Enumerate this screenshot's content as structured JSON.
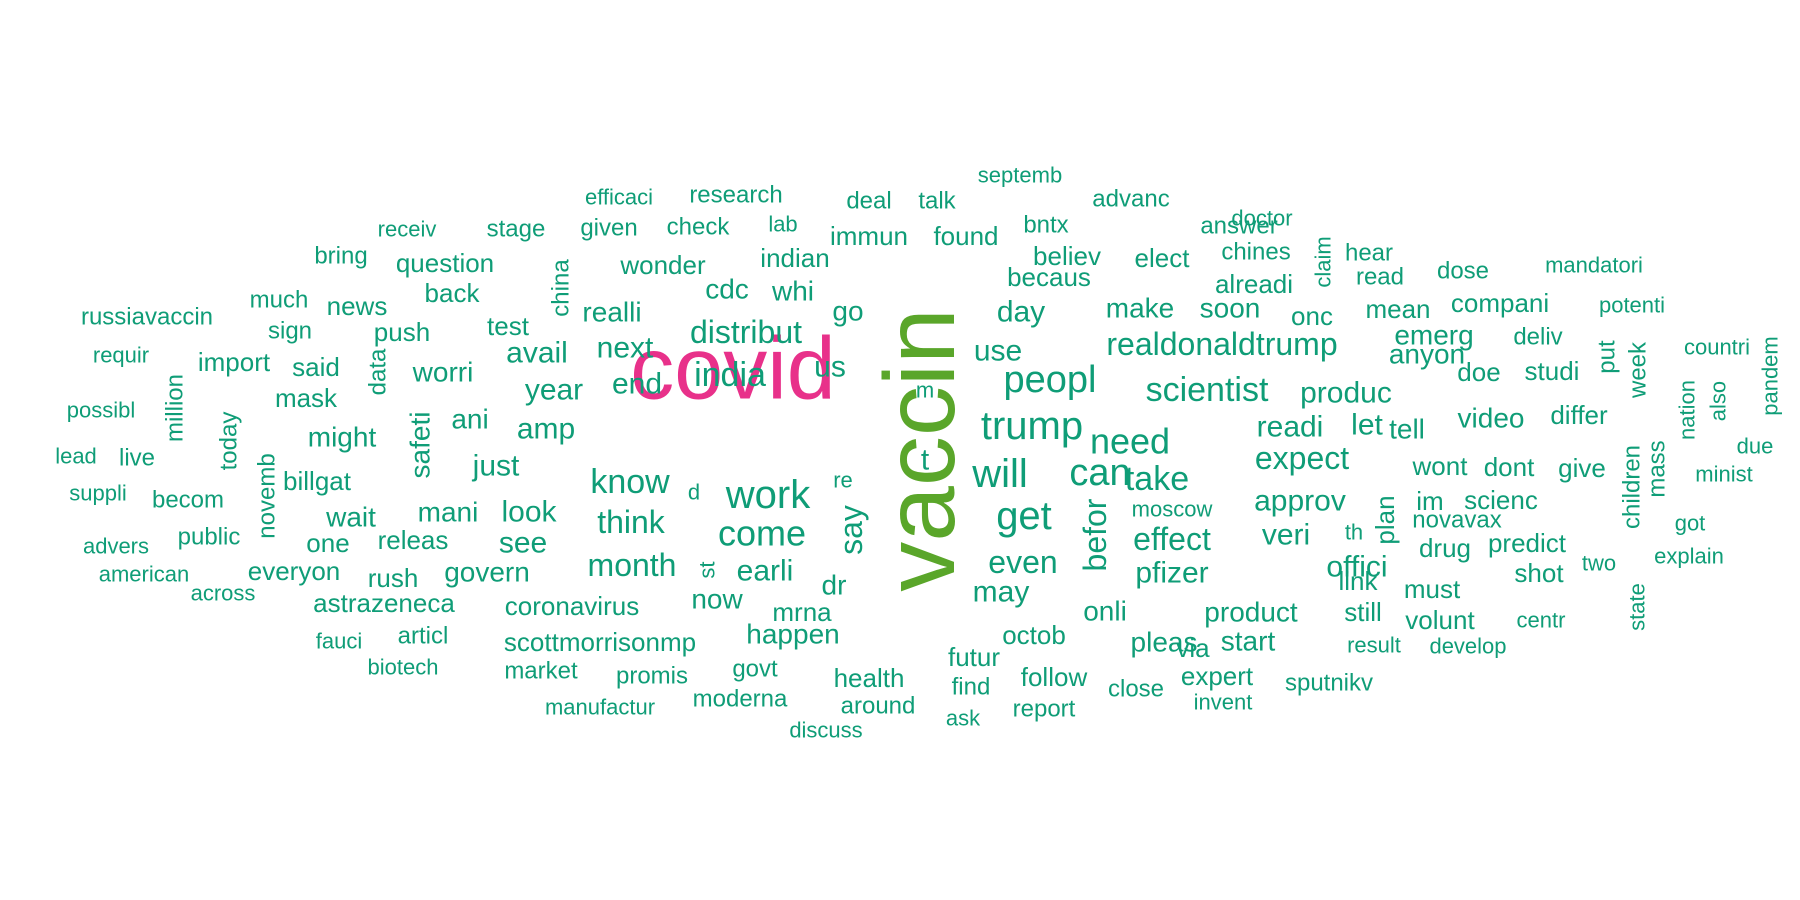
{
  "colors": {
    "primary": "#0f9d77",
    "secondary": "#5aa62a",
    "accent": "#e8318a",
    "text": "#22936c"
  },
  "words": [
    {
      "text": "vaccin",
      "size": 100,
      "color": "secondary",
      "rotate": -90
    },
    {
      "text": "covid",
      "size": 88,
      "color": "accent",
      "rotate": 0
    },
    {
      "text": "trump",
      "size": 40,
      "color": "primary",
      "rotate": 0
    },
    {
      "text": "work",
      "size": 40,
      "color": "primary",
      "rotate": 0
    },
    {
      "text": "get",
      "size": 40,
      "color": "primary",
      "rotate": 0
    },
    {
      "text": "will",
      "size": 40,
      "color": "primary",
      "rotate": 0
    },
    {
      "text": "peopl",
      "size": 38,
      "color": "primary",
      "rotate": 0
    },
    {
      "text": "can",
      "size": 38,
      "color": "primary",
      "rotate": 0
    },
    {
      "text": "come",
      "size": 36,
      "color": "primary",
      "rotate": 0
    },
    {
      "text": "know",
      "size": 34,
      "color": "primary",
      "rotate": 0
    },
    {
      "text": "need",
      "size": 36,
      "color": "primary",
      "rotate": 0
    },
    {
      "text": "take",
      "size": 34,
      "color": "primary",
      "rotate": 0
    },
    {
      "text": "india",
      "size": 34,
      "color": "primary",
      "rotate": 0
    },
    {
      "text": "say",
      "size": 32,
      "color": "primary",
      "rotate": -90
    },
    {
      "text": "befor",
      "size": 32,
      "color": "primary",
      "rotate": -90
    },
    {
      "text": "realdonaldtrump",
      "size": 32,
      "color": "primary",
      "rotate": 0
    },
    {
      "text": "scientist",
      "size": 34,
      "color": "primary",
      "rotate": 0
    },
    {
      "text": "expect",
      "size": 32,
      "color": "primary",
      "rotate": 0
    },
    {
      "text": "distribut",
      "size": 32,
      "color": "primary",
      "rotate": 0
    },
    {
      "text": "think",
      "size": 32,
      "color": "primary",
      "rotate": 0
    },
    {
      "text": "month",
      "size": 32,
      "color": "primary",
      "rotate": 0
    },
    {
      "text": "even",
      "size": 32,
      "color": "primary",
      "rotate": 0
    },
    {
      "text": "effect",
      "size": 32,
      "color": "primary",
      "rotate": 0
    },
    {
      "text": "approv",
      "size": 30,
      "color": "primary",
      "rotate": 0
    },
    {
      "text": "amp",
      "size": 30,
      "color": "primary",
      "rotate": 0
    },
    {
      "text": "year",
      "size": 30,
      "color": "primary",
      "rotate": 0
    },
    {
      "text": "end",
      "size": 30,
      "color": "primary",
      "rotate": 0
    },
    {
      "text": "just",
      "size": 30,
      "color": "primary",
      "rotate": 0
    },
    {
      "text": "look",
      "size": 30,
      "color": "primary",
      "rotate": 0
    },
    {
      "text": "earli",
      "size": 30,
      "color": "primary",
      "rotate": 0
    },
    {
      "text": "may",
      "size": 30,
      "color": "primary",
      "rotate": 0
    },
    {
      "text": "us",
      "size": 30,
      "color": "primary",
      "rotate": 0
    },
    {
      "text": "day",
      "size": 30,
      "color": "primary",
      "rotate": 0
    },
    {
      "text": "use",
      "size": 30,
      "color": "primary",
      "rotate": 0
    },
    {
      "text": "readi",
      "size": 30,
      "color": "primary",
      "rotate": 0
    },
    {
      "text": "let",
      "size": 30,
      "color": "primary",
      "rotate": 0
    },
    {
      "text": "pfizer",
      "size": 30,
      "color": "primary",
      "rotate": 0
    },
    {
      "text": "veri",
      "size": 30,
      "color": "primary",
      "rotate": 0
    },
    {
      "text": "offici",
      "size": 30,
      "color": "primary",
      "rotate": 0
    },
    {
      "text": "produc",
      "size": 30,
      "color": "primary",
      "rotate": 0
    },
    {
      "text": "next",
      "size": 30,
      "color": "primary",
      "rotate": 0
    },
    {
      "text": "avail",
      "size": 30,
      "color": "primary",
      "rotate": 0
    },
    {
      "text": "see",
      "size": 30,
      "color": "primary",
      "rotate": 0
    },
    {
      "text": "now",
      "size": 28,
      "color": "primary",
      "rotate": 0
    },
    {
      "text": "make",
      "size": 28,
      "color": "primary",
      "rotate": 0
    },
    {
      "text": "soon",
      "size": 28,
      "color": "primary",
      "rotate": 0
    },
    {
      "text": "ani",
      "size": 28,
      "color": "primary",
      "rotate": 0
    },
    {
      "text": "mani",
      "size": 28,
      "color": "primary",
      "rotate": 0
    },
    {
      "text": "govern",
      "size": 28,
      "color": "primary",
      "rotate": 0
    },
    {
      "text": "wait",
      "size": 28,
      "color": "primary",
      "rotate": 0
    },
    {
      "text": "might",
      "size": 28,
      "color": "primary",
      "rotate": 0
    },
    {
      "text": "worri",
      "size": 28,
      "color": "primary",
      "rotate": 0
    },
    {
      "text": "go",
      "size": 28,
      "color": "primary",
      "rotate": 0
    },
    {
      "text": "dr",
      "size": 28,
      "color": "primary",
      "rotate": 0
    },
    {
      "text": "onli",
      "size": 28,
      "color": "primary",
      "rotate": 0
    },
    {
      "text": "pleas",
      "size": 28,
      "color": "primary",
      "rotate": 0
    },
    {
      "text": "product",
      "size": 28,
      "color": "primary",
      "rotate": 0
    },
    {
      "text": "start",
      "size": 28,
      "color": "primary",
      "rotate": 0
    },
    {
      "text": "safeti",
      "size": 28,
      "color": "primary",
      "rotate": -90
    },
    {
      "text": "happen",
      "size": 28,
      "color": "primary",
      "rotate": 0
    },
    {
      "text": "realli",
      "size": 28,
      "color": "primary",
      "rotate": 0
    },
    {
      "text": "cdc",
      "size": 28,
      "color": "primary",
      "rotate": 0
    },
    {
      "text": "whi",
      "size": 28,
      "color": "primary",
      "rotate": 0
    },
    {
      "text": "tell",
      "size": 28,
      "color": "primary",
      "rotate": 0
    },
    {
      "text": "video",
      "size": 28,
      "color": "primary",
      "rotate": 0
    },
    {
      "text": "anyon",
      "size": 28,
      "color": "primary",
      "rotate": 0
    },
    {
      "text": "emerg",
      "size": 28,
      "color": "primary",
      "rotate": 0
    },
    {
      "text": "mean",
      "size": 26,
      "color": "primary",
      "rotate": 0
    },
    {
      "text": "alreadi",
      "size": 26,
      "color": "primary",
      "rotate": 0
    },
    {
      "text": "elect",
      "size": 26,
      "color": "primary",
      "rotate": 0
    },
    {
      "text": "becaus",
      "size": 26,
      "color": "primary",
      "rotate": 0
    },
    {
      "text": "believ",
      "size": 26,
      "color": "primary",
      "rotate": 0
    },
    {
      "text": "onc",
      "size": 26,
      "color": "primary",
      "rotate": 0
    },
    {
      "text": "doe",
      "size": 26,
      "color": "primary",
      "rotate": 0
    },
    {
      "text": "studi",
      "size": 26,
      "color": "primary",
      "rotate": 0
    },
    {
      "text": "compani",
      "size": 26,
      "color": "primary",
      "rotate": 0
    },
    {
      "text": "differ",
      "size": 26,
      "color": "primary",
      "rotate": 0
    },
    {
      "text": "wont",
      "size": 26,
      "color": "primary",
      "rotate": 0
    },
    {
      "text": "dont",
      "size": 26,
      "color": "primary",
      "rotate": 0
    },
    {
      "text": "give",
      "size": 26,
      "color": "primary",
      "rotate": 0
    },
    {
      "text": "im",
      "size": 26,
      "color": "primary",
      "rotate": 0
    },
    {
      "text": "scienc",
      "size": 26,
      "color": "primary",
      "rotate": 0
    },
    {
      "text": "predict",
      "size": 26,
      "color": "primary",
      "rotate": 0
    },
    {
      "text": "drug",
      "size": 26,
      "color": "primary",
      "rotate": 0
    },
    {
      "text": "plan",
      "size": 26,
      "color": "primary",
      "rotate": -90
    },
    {
      "text": "must",
      "size": 26,
      "color": "primary",
      "rotate": 0
    },
    {
      "text": "link",
      "size": 26,
      "color": "primary",
      "rotate": 0
    },
    {
      "text": "still",
      "size": 26,
      "color": "primary",
      "rotate": 0
    },
    {
      "text": "shot",
      "size": 26,
      "color": "primary",
      "rotate": 0
    },
    {
      "text": "volunt",
      "size": 26,
      "color": "primary",
      "rotate": 0
    },
    {
      "text": "via",
      "size": 26,
      "color": "primary",
      "rotate": 0
    },
    {
      "text": "expert",
      "size": 26,
      "color": "primary",
      "rotate": 0
    },
    {
      "text": "indian",
      "size": 26,
      "color": "primary",
      "rotate": 0
    },
    {
      "text": "wonder",
      "size": 26,
      "color": "primary",
      "rotate": 0
    },
    {
      "text": "immun",
      "size": 26,
      "color": "primary",
      "rotate": 0
    },
    {
      "text": "found",
      "size": 26,
      "color": "primary",
      "rotate": 0
    },
    {
      "text": "octob",
      "size": 26,
      "color": "primary",
      "rotate": 0
    },
    {
      "text": "futur",
      "size": 26,
      "color": "primary",
      "rotate": 0
    },
    {
      "text": "follow",
      "size": 26,
      "color": "primary",
      "rotate": 0
    },
    {
      "text": "health",
      "size": 26,
      "color": "primary",
      "rotate": 0
    },
    {
      "text": "mrna",
      "size": 26,
      "color": "primary",
      "rotate": 0
    },
    {
      "text": "coronavirus",
      "size": 26,
      "color": "primary",
      "rotate": 0
    },
    {
      "text": "scottmorrisonmp",
      "size": 26,
      "color": "primary",
      "rotate": 0
    },
    {
      "text": "astrazeneca",
      "size": 26,
      "color": "primary",
      "rotate": 0
    },
    {
      "text": "rush",
      "size": 26,
      "color": "primary",
      "rotate": 0
    },
    {
      "text": "everyon",
      "size": 26,
      "color": "primary",
      "rotate": 0
    },
    {
      "text": "one",
      "size": 26,
      "color": "primary",
      "rotate": 0
    },
    {
      "text": "releas",
      "size": 26,
      "color": "primary",
      "rotate": 0
    },
    {
      "text": "billgat",
      "size": 26,
      "color": "primary",
      "rotate": 0
    },
    {
      "text": "mask",
      "size": 26,
      "color": "primary",
      "rotate": 0
    },
    {
      "text": "said",
      "size": 26,
      "color": "primary",
      "rotate": 0
    },
    {
      "text": "push",
      "size": 26,
      "color": "primary",
      "rotate": 0
    },
    {
      "text": "test",
      "size": 26,
      "color": "primary",
      "rotate": 0
    },
    {
      "text": "back",
      "size": 26,
      "color": "primary",
      "rotate": 0
    },
    {
      "text": "question",
      "size": 26,
      "color": "primary",
      "rotate": 0
    },
    {
      "text": "news",
      "size": 26,
      "color": "primary",
      "rotate": 0
    },
    {
      "text": "import",
      "size": 26,
      "color": "primary",
      "rotate": 0
    },
    {
      "text": "public",
      "size": 24,
      "color": "primary",
      "rotate": 0
    },
    {
      "text": "becom",
      "size": 24,
      "color": "primary",
      "rotate": 0
    },
    {
      "text": "articl",
      "size": 24,
      "color": "primary",
      "rotate": 0
    },
    {
      "text": "market",
      "size": 24,
      "color": "primary",
      "rotate": 0
    },
    {
      "text": "promis",
      "size": 24,
      "color": "primary",
      "rotate": 0
    },
    {
      "text": "govt",
      "size": 24,
      "color": "primary",
      "rotate": 0
    },
    {
      "text": "moderna",
      "size": 24,
      "color": "primary",
      "rotate": 0
    },
    {
      "text": "around",
      "size": 24,
      "color": "primary",
      "rotate": 0
    },
    {
      "text": "find",
      "size": 24,
      "color": "primary",
      "rotate": 0
    },
    {
      "text": "report",
      "size": 24,
      "color": "primary",
      "rotate": 0
    },
    {
      "text": "close",
      "size": 24,
      "color": "primary",
      "rotate": 0
    },
    {
      "text": "sputnikv",
      "size": 24,
      "color": "primary",
      "rotate": 0
    },
    {
      "text": "novavax",
      "size": 24,
      "color": "primary",
      "rotate": 0
    },
    {
      "text": "read",
      "size": 24,
      "color": "primary",
      "rotate": 0
    },
    {
      "text": "chines",
      "size": 24,
      "color": "primary",
      "rotate": 0
    },
    {
      "text": "hear",
      "size": 24,
      "color": "primary",
      "rotate": 0
    },
    {
      "text": "dose",
      "size": 24,
      "color": "primary",
      "rotate": 0
    },
    {
      "text": "deliv",
      "size": 24,
      "color": "primary",
      "rotate": 0
    },
    {
      "text": "check",
      "size": 24,
      "color": "primary",
      "rotate": 0
    },
    {
      "text": "given",
      "size": 24,
      "color": "primary",
      "rotate": 0
    },
    {
      "text": "stage",
      "size": 24,
      "color": "primary",
      "rotate": 0
    },
    {
      "text": "research",
      "size": 24,
      "color": "primary",
      "rotate": 0
    },
    {
      "text": "deal",
      "size": 24,
      "color": "primary",
      "rotate": 0
    },
    {
      "text": "talk",
      "size": 24,
      "color": "primary",
      "rotate": 0
    },
    {
      "text": "bntx",
      "size": 24,
      "color": "primary",
      "rotate": 0
    },
    {
      "text": "advanc",
      "size": 24,
      "color": "primary",
      "rotate": 0
    },
    {
      "text": "answer",
      "size": 24,
      "color": "primary",
      "rotate": 0
    },
    {
      "text": "sign",
      "size": 24,
      "color": "primary",
      "rotate": 0
    },
    {
      "text": "much",
      "size": 24,
      "color": "primary",
      "rotate": 0
    },
    {
      "text": "bring",
      "size": 24,
      "color": "primary",
      "rotate": 0
    },
    {
      "text": "russiavaccin",
      "size": 24,
      "color": "primary",
      "rotate": 0
    },
    {
      "text": "live",
      "size": 24,
      "color": "primary",
      "rotate": 0
    },
    {
      "text": "lead",
      "size": 22,
      "color": "primary",
      "rotate": 0
    },
    {
      "text": "suppli",
      "size": 22,
      "color": "primary",
      "rotate": 0
    },
    {
      "text": "advers",
      "size": 22,
      "color": "primary",
      "rotate": 0
    },
    {
      "text": "across",
      "size": 22,
      "color": "primary",
      "rotate": 0
    },
    {
      "text": "fauci",
      "size": 22,
      "color": "primary",
      "rotate": 0
    },
    {
      "text": "biotech",
      "size": 22,
      "color": "primary",
      "rotate": 0
    },
    {
      "text": "manufactur",
      "size": 22,
      "color": "primary",
      "rotate": 0
    },
    {
      "text": "discuss",
      "size": 22,
      "color": "primary",
      "rotate": 0
    },
    {
      "text": "ask",
      "size": 22,
      "color": "primary",
      "rotate": 0
    },
    {
      "text": "invent",
      "size": 22,
      "color": "primary",
      "rotate": 0
    },
    {
      "text": "result",
      "size": 22,
      "color": "primary",
      "rotate": 0
    },
    {
      "text": "develop",
      "size": 22,
      "color": "primary",
      "rotate": 0
    },
    {
      "text": "centr",
      "size": 22,
      "color": "primary",
      "rotate": 0
    },
    {
      "text": "two",
      "size": 22,
      "color": "primary",
      "rotate": 0
    },
    {
      "text": "got",
      "size": 22,
      "color": "primary",
      "rotate": 0
    },
    {
      "text": "explain",
      "size": 22,
      "color": "primary",
      "rotate": 0
    },
    {
      "text": "minist",
      "size": 22,
      "color": "primary",
      "rotate": 0
    },
    {
      "text": "due",
      "size": 22,
      "color": "primary",
      "rotate": 0
    },
    {
      "text": "countri",
      "size": 22,
      "color": "primary",
      "rotate": 0
    },
    {
      "text": "mandatori",
      "size": 22,
      "color": "primary",
      "rotate": 0
    },
    {
      "text": "potenti",
      "size": 22,
      "color": "primary",
      "rotate": 0
    },
    {
      "text": "doctor",
      "size": 22,
      "color": "primary",
      "rotate": 0
    },
    {
      "text": "septemb",
      "size": 22,
      "color": "primary",
      "rotate": 0
    },
    {
      "text": "efficaci",
      "size": 22,
      "color": "primary",
      "rotate": 0
    },
    {
      "text": "lab",
      "size": 22,
      "color": "primary",
      "rotate": 0
    },
    {
      "text": "receiv",
      "size": 22,
      "color": "primary",
      "rotate": 0
    },
    {
      "text": "requir",
      "size": 22,
      "color": "primary",
      "rotate": 0
    },
    {
      "text": "possibl",
      "size": 22,
      "color": "primary",
      "rotate": 0
    },
    {
      "text": "american",
      "size": 22,
      "color": "primary",
      "rotate": 0
    },
    {
      "text": "moscow",
      "size": 22,
      "color": "primary",
      "rotate": 0
    },
    {
      "text": "th",
      "size": 22,
      "color": "primary",
      "rotate": 0
    },
    {
      "text": "m",
      "size": 22,
      "color": "primary",
      "rotate": 0
    },
    {
      "text": "re",
      "size": 22,
      "color": "primary",
      "rotate": 0
    },
    {
      "text": "d",
      "size": 22,
      "color": "primary",
      "rotate": 0
    },
    {
      "text": "t",
      "size": 30,
      "color": "primary",
      "rotate": 0
    },
    {
      "text": "st",
      "size": 22,
      "color": "primary",
      "rotate": -90
    },
    {
      "text": "china",
      "size": 24,
      "color": "primary",
      "rotate": -90
    },
    {
      "text": "data",
      "size": 24,
      "color": "primary",
      "rotate": -90
    },
    {
      "text": "million",
      "size": 24,
      "color": "primary",
      "rotate": -90
    },
    {
      "text": "today",
      "size": 24,
      "color": "primary",
      "rotate": -90
    },
    {
      "text": "novemb",
      "size": 24,
      "color": "primary",
      "rotate": -90
    },
    {
      "text": "claim",
      "size": 22,
      "color": "primary",
      "rotate": -90
    },
    {
      "text": "children",
      "size": 24,
      "color": "primary",
      "rotate": -90
    },
    {
      "text": "mass",
      "size": 24,
      "color": "primary",
      "rotate": -90
    },
    {
      "text": "put",
      "size": 24,
      "color": "primary",
      "rotate": -90
    },
    {
      "text": "week",
      "size": 24,
      "color": "primary",
      "rotate": -90
    },
    {
      "text": "nation",
      "size": 22,
      "color": "primary",
      "rotate": -90
    },
    {
      "text": "also",
      "size": 22,
      "color": "primary",
      "rotate": -90
    },
    {
      "text": "pandem",
      "size": 22,
      "color": "primary",
      "rotate": -90
    },
    {
      "text": "state",
      "size": 22,
      "color": "primary",
      "rotate": -90
    }
  ]
}
